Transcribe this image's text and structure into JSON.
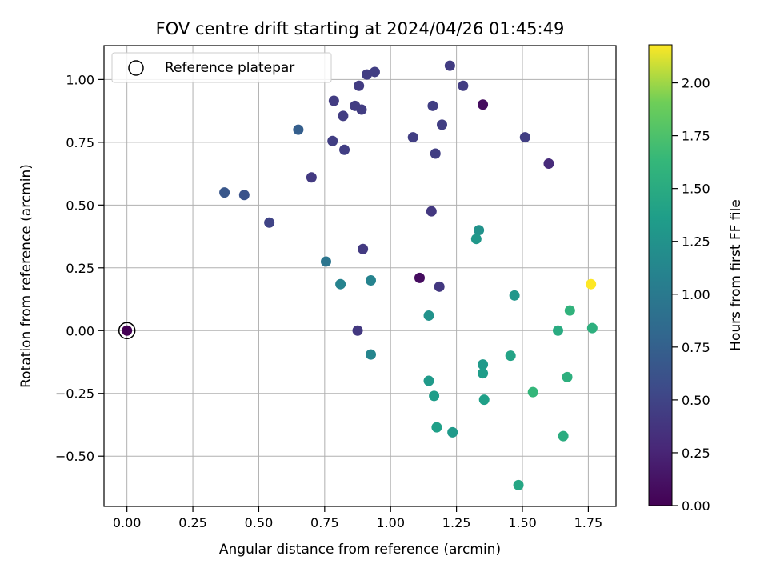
{
  "chart_data": {
    "type": "scatter",
    "title": "FOV centre drift starting at 2024/04/26 01:45:49",
    "xlabel": "Angular distance from reference (arcmin)",
    "ylabel": "Rotation from reference (arcmin)",
    "xlim": [
      -0.087,
      1.855
    ],
    "ylim": [
      -0.7,
      1.135
    ],
    "x_ticks": [
      0.0,
      0.25,
      0.5,
      0.75,
      1.0,
      1.25,
      1.5,
      1.75
    ],
    "x_tick_labels": [
      "0.00",
      "0.25",
      "0.50",
      "0.75",
      "1.00",
      "1.25",
      "1.50",
      "1.75"
    ],
    "y_ticks": [
      -0.5,
      -0.25,
      0.0,
      0.25,
      0.5,
      0.75,
      1.0
    ],
    "y_tick_labels": [
      "−0.50",
      "−0.25",
      "0.00",
      "0.25",
      "0.50",
      "0.75",
      "1.00"
    ],
    "grid": true,
    "legend": {
      "placement": "top-left",
      "entries": [
        {
          "label": "Reference platepar",
          "marker": "open-circle"
        }
      ]
    },
    "colorbar": {
      "label": "Hours from first FF file",
      "colormap": "viridis",
      "range": [
        0.0,
        2.18
      ],
      "ticks": [
        0.0,
        0.25,
        0.5,
        0.75,
        1.0,
        1.25,
        1.5,
        1.75,
        2.0
      ],
      "tick_labels": [
        "0.00",
        "0.25",
        "0.50",
        "0.75",
        "1.00",
        "1.25",
        "1.50",
        "1.75",
        "2.00"
      ]
    },
    "reference_point": {
      "x": 0.0,
      "y": 0.0,
      "hours": 0.0
    },
    "points": [
      {
        "x": 1.35,
        "y": 0.9,
        "hours": 0.08
      },
      {
        "x": 1.11,
        "y": 0.21,
        "hours": 0.08
      },
      {
        "x": 1.6,
        "y": 0.665,
        "hours": 0.3
      },
      {
        "x": 1.155,
        "y": 0.475,
        "hours": 0.4
      },
      {
        "x": 0.895,
        "y": 0.325,
        "hours": 0.42
      },
      {
        "x": 0.875,
        "y": 0.0,
        "hours": 0.4
      },
      {
        "x": 1.185,
        "y": 0.175,
        "hours": 0.4
      },
      {
        "x": 0.7,
        "y": 0.61,
        "hours": 0.42
      },
      {
        "x": 0.78,
        "y": 0.755,
        "hours": 0.45
      },
      {
        "x": 0.825,
        "y": 0.72,
        "hours": 0.45
      },
      {
        "x": 0.785,
        "y": 0.915,
        "hours": 0.43
      },
      {
        "x": 0.82,
        "y": 0.855,
        "hours": 0.44
      },
      {
        "x": 0.865,
        "y": 0.895,
        "hours": 0.44
      },
      {
        "x": 0.89,
        "y": 0.88,
        "hours": 0.44
      },
      {
        "x": 0.88,
        "y": 0.975,
        "hours": 0.43
      },
      {
        "x": 0.91,
        "y": 1.02,
        "hours": 0.44
      },
      {
        "x": 0.94,
        "y": 1.03,
        "hours": 0.45
      },
      {
        "x": 1.085,
        "y": 0.77,
        "hours": 0.45
      },
      {
        "x": 1.16,
        "y": 0.895,
        "hours": 0.45
      },
      {
        "x": 1.17,
        "y": 0.705,
        "hours": 0.45
      },
      {
        "x": 1.195,
        "y": 0.82,
        "hours": 0.45
      },
      {
        "x": 1.225,
        "y": 1.055,
        "hours": 0.43
      },
      {
        "x": 1.275,
        "y": 0.975,
        "hours": 0.44
      },
      {
        "x": 1.51,
        "y": 0.77,
        "hours": 0.45
      },
      {
        "x": 0.54,
        "y": 0.43,
        "hours": 0.5
      },
      {
        "x": 0.445,
        "y": 0.54,
        "hours": 0.62
      },
      {
        "x": 0.37,
        "y": 0.55,
        "hours": 0.66
      },
      {
        "x": 0.65,
        "y": 0.8,
        "hours": 0.74
      },
      {
        "x": 0.755,
        "y": 0.275,
        "hours": 0.95
      },
      {
        "x": 0.81,
        "y": 0.185,
        "hours": 1.1
      },
      {
        "x": 0.925,
        "y": 0.2,
        "hours": 1.1
      },
      {
        "x": 0.925,
        "y": -0.095,
        "hours": 1.12
      },
      {
        "x": 1.145,
        "y": 0.06,
        "hours": 1.25
      },
      {
        "x": 1.335,
        "y": 0.4,
        "hours": 1.25
      },
      {
        "x": 1.325,
        "y": 0.365,
        "hours": 1.3
      },
      {
        "x": 1.47,
        "y": 0.14,
        "hours": 1.28
      },
      {
        "x": 1.145,
        "y": -0.2,
        "hours": 1.32
      },
      {
        "x": 1.165,
        "y": -0.26,
        "hours": 1.35
      },
      {
        "x": 1.175,
        "y": -0.385,
        "hours": 1.38
      },
      {
        "x": 1.235,
        "y": -0.405,
        "hours": 1.32
      },
      {
        "x": 1.35,
        "y": -0.135,
        "hours": 1.32
      },
      {
        "x": 1.35,
        "y": -0.17,
        "hours": 1.35
      },
      {
        "x": 1.355,
        "y": -0.275,
        "hours": 1.38
      },
      {
        "x": 1.455,
        "y": -0.1,
        "hours": 1.42
      },
      {
        "x": 1.485,
        "y": -0.615,
        "hours": 1.45
      },
      {
        "x": 1.54,
        "y": -0.245,
        "hours": 1.62
      },
      {
        "x": 1.635,
        "y": 0.0,
        "hours": 1.5
      },
      {
        "x": 1.655,
        "y": -0.42,
        "hours": 1.52
      },
      {
        "x": 1.67,
        "y": -0.185,
        "hours": 1.55
      },
      {
        "x": 1.68,
        "y": 0.08,
        "hours": 1.58
      },
      {
        "x": 1.765,
        "y": 0.01,
        "hours": 1.55
      },
      {
        "x": 1.76,
        "y": 0.185,
        "hours": 2.18
      }
    ]
  }
}
